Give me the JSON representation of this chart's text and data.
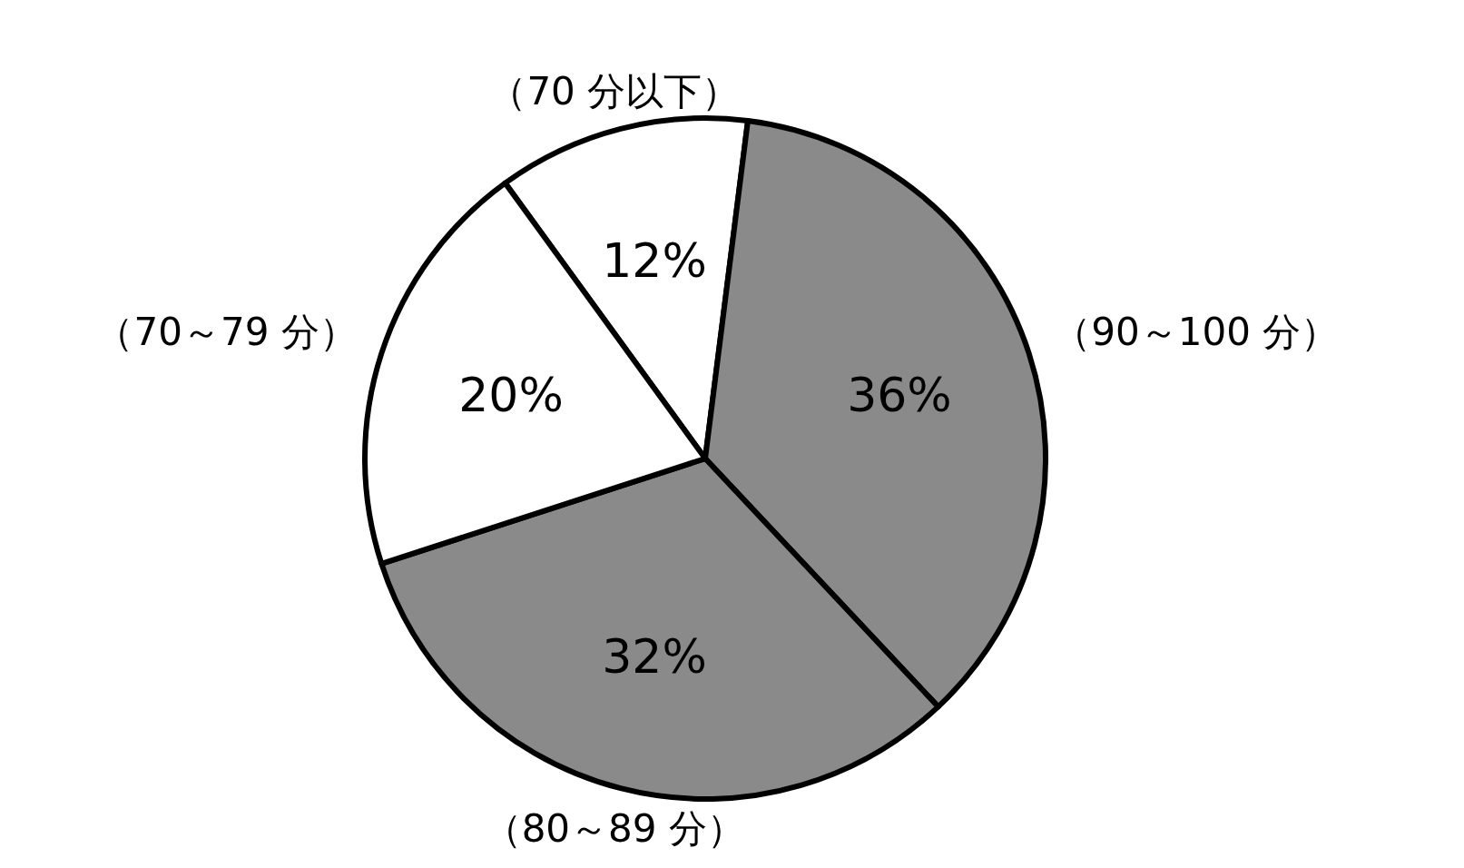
{
  "chart_data": {
    "type": "pie",
    "categories": [
      "（70 分以下）",
      "（90～100 分）",
      "（80～89 分）",
      "（70～79 分）"
    ],
    "values": [
      12,
      36,
      32,
      20
    ],
    "value_labels": [
      "12%",
      "36%",
      "32%",
      "20%"
    ],
    "colors": [
      "#ffffff",
      "#8a8a8a",
      "#8a8a8a",
      "#ffffff"
    ]
  }
}
